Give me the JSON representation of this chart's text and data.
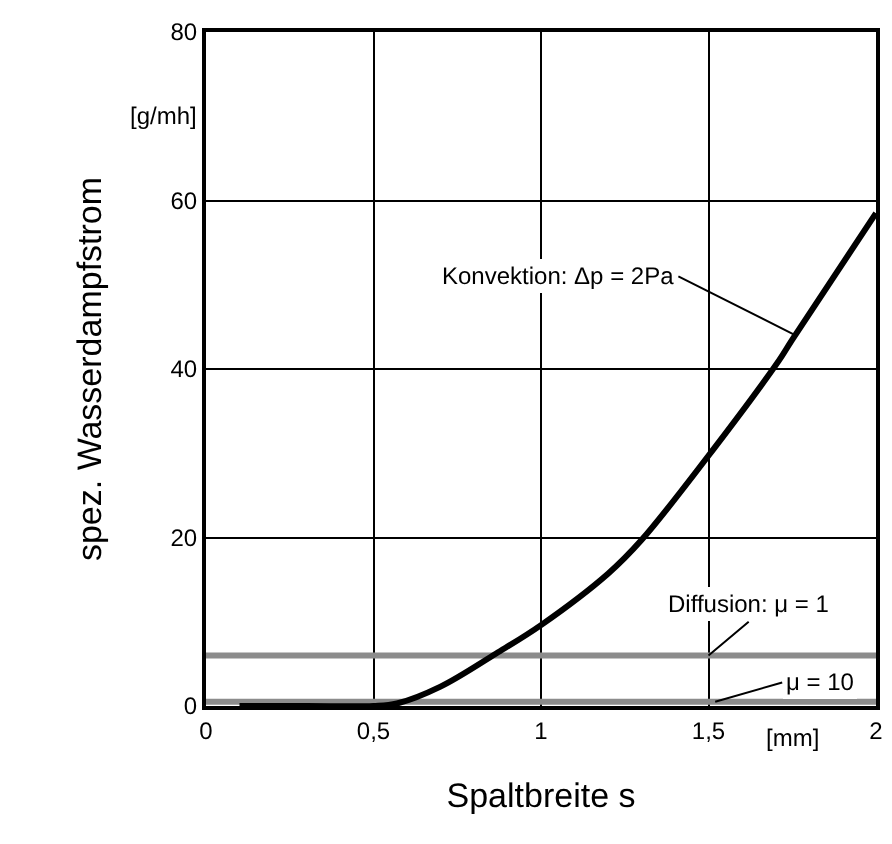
{
  "chart_data": {
    "type": "line",
    "xlabel": "Spaltbreite s",
    "ylabel": "spez. Wasserdampfstrom",
    "series": [
      {
        "color": "#000000",
        "x": [
          0.1,
          0.3,
          0.5,
          0.57,
          0.7,
          0.865,
          1.0,
          1.2,
          1.3,
          1.49,
          1.71,
          1.75,
          2.0
        ],
        "values": [
          0,
          0,
          0,
          0.3,
          2.3,
          6.2,
          9.6,
          15.7,
          19.7,
          29.2,
          41,
          43.5,
          58.5
        ]
      },
      {
        "name": "Diffusion: μ = 1",
        "color": "#8c8c8c",
        "x": [
          0,
          2
        ],
        "values": [
          6,
          6
        ]
      },
      {
        "name": "μ = 10",
        "color": "#8c8c8c",
        "x": [
          0,
          2
        ],
        "values": [
          0.5,
          0.5
        ]
      }
    ],
    "annotations": [
      "[g/mh]",
      "[mm]",
      {
        "text": "Konvektion: Δp = 2Pa",
        "x": 1.76,
        "y": 44
      }
    ],
    "xlim": [
      0,
      2
    ],
    "xticks": [
      0,
      {
        "value": 0.5,
        "label": "0,5"
      },
      1,
      {
        "value": 1.5,
        "label": "1,5"
      },
      2
    ],
    "ylim": [
      0,
      80
    ],
    "yticks": [
      0,
      20,
      40,
      60,
      80
    ],
    "grid": true,
    "legend": false,
    "line_style": "solid",
    "marker": "none"
  }
}
